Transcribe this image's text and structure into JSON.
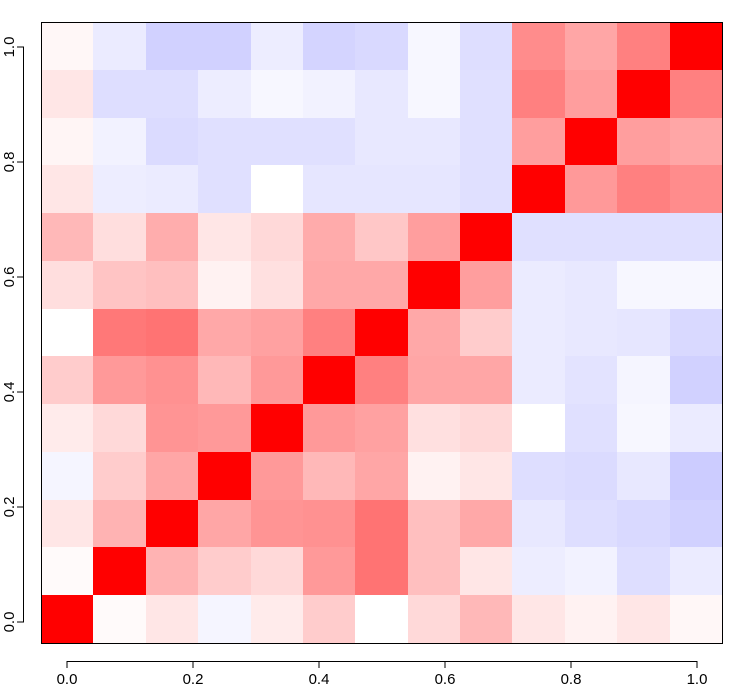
{
  "chart_data": {
    "type": "heatmap",
    "title": "",
    "xlabel": "",
    "ylabel": "",
    "xlim": [
      0,
      1
    ],
    "ylim": [
      0,
      1
    ],
    "x_ticks": [
      "0.0",
      "0.2",
      "0.4",
      "0.6",
      "0.8",
      "1.0"
    ],
    "y_ticks": [
      "0.0",
      "0.2",
      "0.4",
      "0.6",
      "0.8",
      "1.0"
    ],
    "grid": false,
    "color_scale": {
      "negative": "#0000FF",
      "zero": "#FFFFFF",
      "positive": "#FF0000"
    },
    "rows": 13,
    "cols": 13,
    "values": [
      [
        1.0,
        0.02,
        0.1,
        -0.04,
        0.08,
        0.2,
        0.0,
        0.15,
        0.28,
        0.1,
        0.05,
        0.1,
        0.03
      ],
      [
        0.02,
        1.0,
        0.3,
        0.2,
        0.15,
        0.4,
        0.55,
        0.25,
        0.1,
        -0.07,
        -0.05,
        -0.13,
        -0.08
      ],
      [
        0.1,
        0.3,
        1.0,
        0.35,
        0.42,
        0.43,
        0.55,
        0.25,
        0.34,
        -0.09,
        -0.13,
        -0.15,
        -0.18
      ],
      [
        -0.04,
        0.2,
        0.35,
        1.0,
        0.4,
        0.28,
        0.35,
        0.05,
        0.1,
        -0.13,
        -0.14,
        -0.09,
        -0.2
      ],
      [
        0.08,
        0.15,
        0.42,
        0.4,
        1.0,
        0.4,
        0.37,
        0.12,
        0.15,
        0.0,
        -0.12,
        -0.03,
        -0.08
      ],
      [
        0.2,
        0.4,
        0.43,
        0.28,
        0.4,
        1.0,
        0.5,
        0.35,
        0.35,
        -0.08,
        -0.11,
        -0.04,
        -0.18
      ],
      [
        0.0,
        0.53,
        0.55,
        0.34,
        0.37,
        0.5,
        1.0,
        0.34,
        0.2,
        -0.08,
        -0.09,
        -0.1,
        -0.15
      ],
      [
        0.13,
        0.23,
        0.25,
        0.05,
        0.12,
        0.34,
        0.34,
        1.0,
        0.38,
        -0.08,
        -0.09,
        -0.03,
        -0.03
      ],
      [
        0.28,
        0.13,
        0.32,
        0.1,
        0.15,
        0.33,
        0.22,
        0.38,
        1.0,
        -0.12,
        -0.12,
        -0.12,
        -0.12
      ],
      [
        0.1,
        -0.07,
        -0.08,
        -0.12,
        0.0,
        -0.1,
        -0.1,
        -0.1,
        -0.12,
        1.0,
        0.4,
        0.5,
        0.45
      ],
      [
        0.04,
        -0.05,
        -0.14,
        -0.12,
        -0.12,
        -0.12,
        -0.09,
        -0.09,
        -0.12,
        0.38,
        1.0,
        0.38,
        0.35
      ],
      [
        0.1,
        -0.13,
        -0.13,
        -0.07,
        -0.03,
        -0.05,
        -0.09,
        -0.03,
        -0.12,
        0.5,
        0.38,
        1.0,
        0.5
      ],
      [
        0.03,
        -0.08,
        -0.18,
        -0.18,
        -0.07,
        -0.17,
        -0.15,
        -0.03,
        -0.13,
        0.45,
        0.35,
        0.5,
        1.0
      ]
    ]
  }
}
